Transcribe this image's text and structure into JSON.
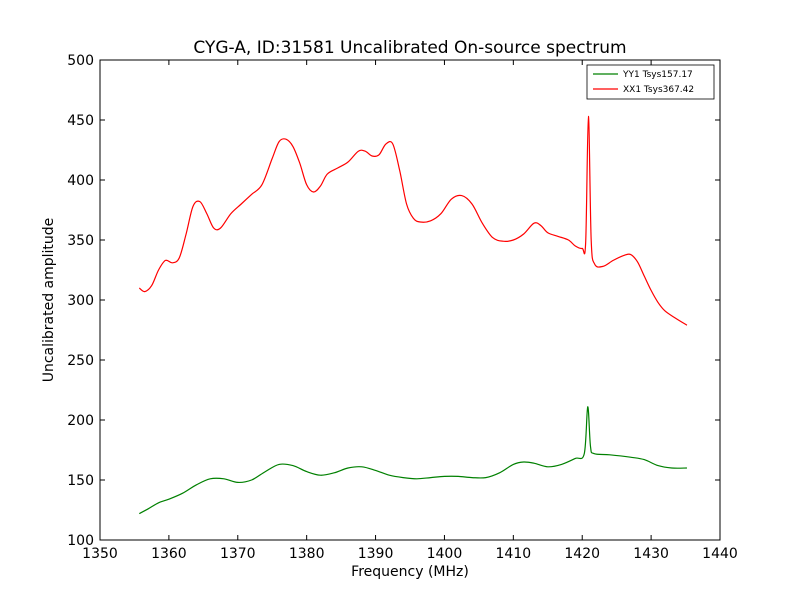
{
  "chart_data": {
    "type": "line",
    "title": "CYG-A, ID:31581 Uncalibrated On-source spectrum",
    "xlabel": "Frequency (MHz)",
    "ylabel": "Uncalibrated amplitude",
    "xlim": [
      1350,
      1440
    ],
    "ylim": [
      100,
      500
    ],
    "xticks": [
      1350,
      1360,
      1370,
      1380,
      1390,
      1400,
      1410,
      1420,
      1430,
      1440
    ],
    "yticks": [
      100,
      150,
      200,
      250,
      300,
      350,
      400,
      450,
      500
    ],
    "grid": false,
    "legend_position": "top-right",
    "series": [
      {
        "name": "YY1 Tsys157.17",
        "color": "#008000",
        "x": [
          1355.7,
          1357,
          1358.5,
          1360,
          1362,
          1364,
          1366,
          1368,
          1370,
          1372,
          1374,
          1376,
          1378,
          1380,
          1382,
          1384,
          1386,
          1388,
          1390,
          1392,
          1394,
          1396,
          1398,
          1400,
          1402,
          1404,
          1406,
          1408,
          1410,
          1411.5,
          1413,
          1415,
          1417,
          1419,
          1420.3,
          1420.8,
          1421.2,
          1421.7,
          1424,
          1427,
          1429,
          1431,
          1433,
          1435.2
        ],
        "y": [
          122,
          126,
          131,
          134,
          139,
          146,
          151,
          151,
          148,
          150,
          157,
          163,
          162,
          157,
          154,
          156,
          160,
          161,
          158,
          154,
          152,
          151,
          152,
          153,
          153,
          152,
          152,
          156,
          163,
          165,
          164,
          161,
          163,
          168,
          172,
          211,
          178,
          172,
          171,
          169,
          167,
          162,
          160,
          160
        ]
      },
      {
        "name": "XX1 Tsys367.42",
        "color": "#ff0000",
        "x": [
          1355.7,
          1356.5,
          1357.5,
          1358.5,
          1359.5,
          1360.5,
          1361.5,
          1362.5,
          1363.5,
          1364.5,
          1365.5,
          1366.5,
          1367.5,
          1369,
          1370.5,
          1372,
          1373.5,
          1375,
          1376,
          1377,
          1378,
          1379,
          1380,
          1381,
          1382,
          1383,
          1384.5,
          1386,
          1387.5,
          1388.5,
          1389.5,
          1390.5,
          1391.5,
          1392.5,
          1393.5,
          1394.5,
          1395.5,
          1396.5,
          1398,
          1399.5,
          1401,
          1402.5,
          1404,
          1405.5,
          1407,
          1408.5,
          1410,
          1411.5,
          1413,
          1414,
          1415,
          1416.5,
          1418,
          1419,
          1420,
          1420.5,
          1420.9,
          1421.3,
          1421.8,
          1423,
          1424.5,
          1426,
          1427,
          1428,
          1429,
          1430,
          1431,
          1432,
          1433.5,
          1435.2
        ],
        "y": [
          310,
          307,
          312,
          325,
          333,
          331,
          335,
          355,
          378,
          382,
          372,
          360,
          360,
          372,
          380,
          388,
          396,
          418,
          432,
          434,
          428,
          414,
          396,
          390,
          395,
          405,
          410,
          415,
          424,
          424,
          420,
          421,
          430,
          430,
          408,
          380,
          368,
          365,
          366,
          372,
          384,
          387,
          380,
          364,
          352,
          349,
          350,
          355,
          364,
          362,
          356,
          353,
          350,
          345,
          343,
          348,
          453,
          350,
          330,
          328,
          333,
          337,
          338,
          332,
          320,
          308,
          298,
          291,
          285,
          279
        ]
      }
    ]
  }
}
